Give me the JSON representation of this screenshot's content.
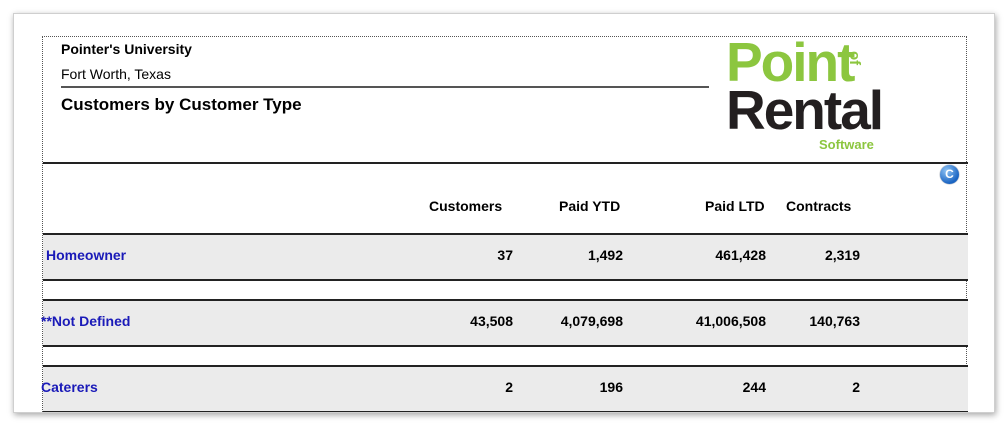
{
  "report": {
    "company": "Pointer's University",
    "city": "Fort Worth, Texas",
    "title": "Customers by Customer Type"
  },
  "logo": {
    "line1": "Point",
    "of": "of",
    "line2": "Rental",
    "tagline": "Software",
    "green": "#8cc63f",
    "dark": "#231f20"
  },
  "export_icon": {
    "glyph": "C",
    "icon": "c-circle-icon"
  },
  "columns": [
    "Customers",
    "Paid YTD",
    "Paid LTD",
    "Contracts"
  ],
  "rows": [
    {
      "type": "Homeowner",
      "customers": "37",
      "paid_ytd": "1,492",
      "paid_ltd": "461,428",
      "contracts": "2,319"
    },
    {
      "type": "**Not Defined",
      "customers": "43,508",
      "paid_ytd": "4,079,698",
      "paid_ltd": "41,006,508",
      "contracts": "140,763"
    },
    {
      "type": "Caterers",
      "customers": "2",
      "paid_ytd": "196",
      "paid_ltd": "244",
      "contracts": "2"
    }
  ]
}
